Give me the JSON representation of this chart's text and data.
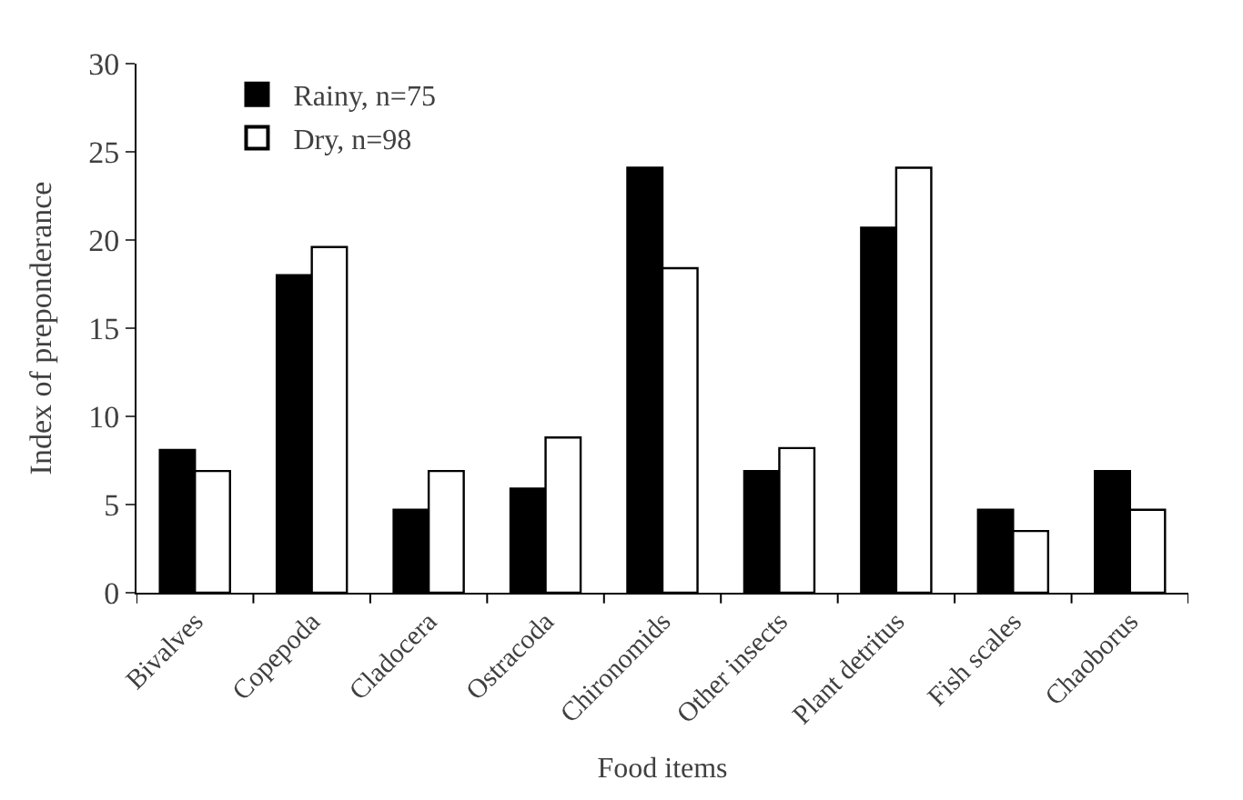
{
  "chart_data": {
    "type": "bar",
    "xlabel": "Food items",
    "ylabel": "Index of preponderance",
    "categories": [
      "Bivalves",
      "Copepoda",
      "Cladocera",
      "Ostracoda",
      "Chironomids",
      "Other insects",
      "Plant detritus",
      "Fish scales",
      "Chaoborus"
    ],
    "series": [
      {
        "name": "Rainy, n=75",
        "color": "#000000",
        "values": [
          8.1,
          18.0,
          4.7,
          5.9,
          24.1,
          6.9,
          20.7,
          4.7,
          6.9
        ]
      },
      {
        "name": "Dry, n=98",
        "color": "#ffffff",
        "values": [
          6.9,
          19.6,
          6.9,
          8.8,
          18.4,
          8.2,
          24.1,
          3.5,
          4.7
        ]
      }
    ],
    "ylim": [
      0,
      30
    ],
    "yticks": [
      0,
      5,
      10,
      15,
      20,
      25,
      30
    ],
    "legend": "top left"
  }
}
